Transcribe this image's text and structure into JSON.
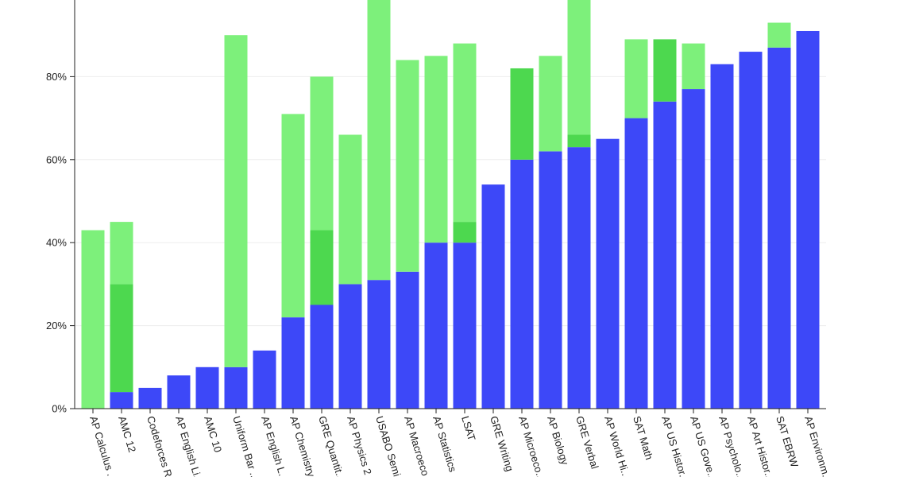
{
  "chart_data": {
    "type": "bar",
    "stacked": true,
    "title": "",
    "xlabel": "",
    "ylabel": "",
    "ylim": [
      0,
      100
    ],
    "y_ticks": [
      0,
      20,
      40,
      60,
      80
    ],
    "y_tick_labels": [
      "0%",
      "20%",
      "40%",
      "60%",
      "80%"
    ],
    "grid": true,
    "categories": [
      "AP Calculus BC",
      "AMC 12",
      "Codeforces Rating",
      "AP English Literature",
      "AMC 10",
      "Uniform Bar Exam",
      "AP English Language",
      "AP Chemistry",
      "GRE Quantitative",
      "AP Physics 2",
      "USABO Semifinal",
      "AP Macroeconomics",
      "AP Statistics",
      "LSAT",
      "GRE Writing",
      "AP Microeconomics",
      "AP Biology",
      "GRE Verbal",
      "AP World History",
      "SAT Math",
      "AP US History",
      "AP US Government",
      "AP Psychology",
      "AP Art History",
      "SAT EBRW",
      "AP Environmental Science"
    ],
    "x_tick_labels": [
      "AP Calculus ...",
      "AMC 12",
      "Codeforces R...",
      "AP English Li...",
      "AMC 10",
      "Uniform Bar ...",
      "AP English L...",
      "AP Chemistry",
      "GRE Quantit...",
      "AP Physics 2",
      "USABO Semi...",
      "AP Macroeco...",
      "AP Statistics",
      "LSAT",
      "GRE Writing",
      "AP Microeco...",
      "AP Biology",
      "GRE Verbal",
      "AP World Hi...",
      "SAT Math",
      "AP US Histor...",
      "AP US Gove...",
      "AP Psycholo...",
      "AP Art Histor...",
      "SAT EBRW",
      "AP Environm..."
    ],
    "series": [
      {
        "color": "#3d48f8",
        "values": [
          0,
          4,
          5,
          8,
          10,
          10,
          14,
          22,
          25,
          30,
          31,
          33,
          40,
          40,
          54,
          60,
          62,
          63,
          65,
          70,
          74,
          77,
          83,
          86,
          87,
          91
        ]
      },
      {
        "color": "#4dd84f",
        "values": [
          0,
          26,
          0,
          0,
          0,
          0,
          0,
          0,
          18,
          0,
          0,
          0,
          0,
          5,
          0,
          22,
          0,
          3,
          0,
          0,
          15,
          0,
          0,
          0,
          0,
          0
        ]
      },
      {
        "color": "#7df07b",
        "values": [
          43,
          15,
          0,
          0,
          0,
          80,
          0,
          49,
          37,
          36,
          69,
          51,
          45,
          43,
          0,
          0,
          23,
          33,
          0,
          19,
          0,
          11,
          0,
          0,
          6,
          0
        ]
      }
    ]
  }
}
